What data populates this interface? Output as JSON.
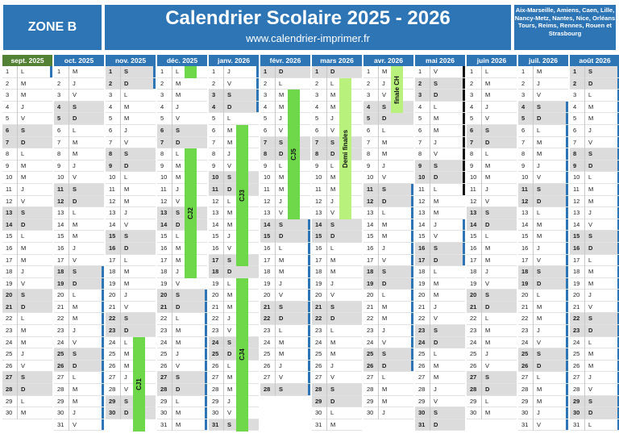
{
  "header": {
    "zone": "ZONE B",
    "title": "Calendrier Scolaire 2025 - 2026",
    "url": "www.calendrier-imprimer.fr",
    "cities": "Aix-Marseille, Amiens, Caen, Lille, Nancy-Metz, Nantes, Nice, Orléans Tours, Reims, Rennes, Rouen et Strasbourg"
  },
  "colors": {
    "header_blue": "#2e75b6",
    "september_green": "#548235",
    "vacation_marker": "#2e75b6",
    "weekend_gray": "#dcdcdc",
    "event_green": "#6ed84a",
    "event_light_green": "#b8f27c"
  },
  "months": [
    {
      "label": "sept. 2025",
      "days": [
        "L",
        "M",
        "M",
        "J",
        "V",
        "S",
        "D",
        "L",
        "M",
        "M",
        "J",
        "V",
        "S",
        "D",
        "L",
        "M",
        "M",
        "J",
        "V",
        "S",
        "D",
        "L",
        "M",
        "M",
        "J",
        "V",
        "S",
        "D",
        "L",
        "M"
      ]
    },
    {
      "label": "oct. 2025",
      "days": [
        "M",
        "J",
        "V",
        "S",
        "D",
        "L",
        "M",
        "M",
        "J",
        "V",
        "S",
        "D",
        "L",
        "M",
        "M",
        "J",
        "V",
        "S",
        "D",
        "L",
        "M",
        "M",
        "J",
        "V",
        "S",
        "D",
        "L",
        "M",
        "M",
        "J",
        "V"
      ]
    },
    {
      "label": "nov. 2025",
      "days": [
        "S",
        "D",
        "L",
        "M",
        "M",
        "J",
        "V",
        "S",
        "D",
        "L",
        "M",
        "M",
        "J",
        "V",
        "S",
        "D",
        "L",
        "M",
        "M",
        "J",
        "V",
        "S",
        "D",
        "L",
        "M",
        "M",
        "J",
        "V",
        "S",
        "D"
      ]
    },
    {
      "label": "déc. 2025",
      "days": [
        "L",
        "M",
        "M",
        "J",
        "V",
        "S",
        "D",
        "L",
        "M",
        "M",
        "J",
        "V",
        "S",
        "D",
        "L",
        "M",
        "M",
        "J",
        "V",
        "S",
        "D",
        "L",
        "M",
        "M",
        "J",
        "V",
        "S",
        "D",
        "L",
        "M",
        "M"
      ]
    },
    {
      "label": "janv. 2026",
      "days": [
        "J",
        "V",
        "S",
        "D",
        "L",
        "M",
        "M",
        "J",
        "V",
        "S",
        "D",
        "L",
        "M",
        "M",
        "J",
        "V",
        "S",
        "D",
        "L",
        "M",
        "M",
        "J",
        "V",
        "S",
        "D",
        "L",
        "M",
        "M",
        "J",
        "V",
        "S"
      ]
    },
    {
      "label": "févr. 2026",
      "days": [
        "D",
        "L",
        "M",
        "M",
        "J",
        "V",
        "S",
        "D",
        "L",
        "M",
        "M",
        "J",
        "V",
        "S",
        "D",
        "L",
        "M",
        "M",
        "J",
        "V",
        "S",
        "D",
        "L",
        "M",
        "M",
        "J",
        "V",
        "S"
      ]
    },
    {
      "label": "mars 2026",
      "days": [
        "D",
        "L",
        "M",
        "M",
        "J",
        "V",
        "S",
        "D",
        "L",
        "M",
        "M",
        "J",
        "V",
        "S",
        "D",
        "L",
        "M",
        "M",
        "J",
        "V",
        "S",
        "D",
        "L",
        "M",
        "M",
        "J",
        "V",
        "S",
        "D",
        "L",
        "M"
      ]
    },
    {
      "label": "avr. 2026",
      "days": [
        "M",
        "J",
        "V",
        "S",
        "D",
        "L",
        "M",
        "M",
        "J",
        "V",
        "S",
        "D",
        "L",
        "M",
        "M",
        "J",
        "V",
        "S",
        "D",
        "L",
        "M",
        "M",
        "J",
        "V",
        "S",
        "D",
        "L",
        "M",
        "M",
        "J"
      ]
    },
    {
      "label": "mai 2026",
      "days": [
        "V",
        "S",
        "D",
        "L",
        "M",
        "M",
        "J",
        "V",
        "S",
        "D",
        "L",
        "M",
        "M",
        "J",
        "V",
        "S",
        "D",
        "L",
        "M",
        "M",
        "J",
        "V",
        "S",
        "D",
        "L",
        "M",
        "M",
        "J",
        "V",
        "S",
        "D"
      ]
    },
    {
      "label": "juin 2026",
      "days": [
        "L",
        "M",
        "M",
        "J",
        "V",
        "S",
        "D",
        "L",
        "M",
        "M",
        "J",
        "V",
        "S",
        "D",
        "L",
        "M",
        "M",
        "J",
        "V",
        "S",
        "D",
        "L",
        "M",
        "M",
        "J",
        "V",
        "S",
        "D",
        "L",
        "M"
      ]
    },
    {
      "label": "juil. 2026",
      "days": [
        "M",
        "J",
        "V",
        "S",
        "D",
        "L",
        "M",
        "M",
        "J",
        "V",
        "S",
        "D",
        "L",
        "M",
        "M",
        "J",
        "V",
        "S",
        "D",
        "L",
        "M",
        "M",
        "J",
        "V",
        "S",
        "D",
        "L",
        "M",
        "M",
        "J",
        "V"
      ]
    },
    {
      "label": "août 2026",
      "days": [
        "S",
        "D",
        "L",
        "M",
        "M",
        "J",
        "V",
        "S",
        "D",
        "L",
        "M",
        "M",
        "J",
        "V",
        "S",
        "D",
        "L",
        "M",
        "M",
        "J",
        "V",
        "S",
        "D",
        "L",
        "M",
        "M",
        "J",
        "V",
        "S",
        "D",
        "L"
      ]
    }
  ],
  "vacations": [
    {
      "month": 1,
      "from": 18,
      "to": 31
    },
    {
      "month": 2,
      "from": 1,
      "to": 2
    },
    {
      "month": 3,
      "from": 20,
      "to": 31
    },
    {
      "month": 4,
      "from": 1,
      "to": 4
    },
    {
      "month": 5,
      "from": 14,
      "to": 28
    },
    {
      "month": 7,
      "from": 11,
      "to": 26
    },
    {
      "month": 8,
      "from": 14,
      "to": 17
    },
    {
      "month": 10,
      "from": 4,
      "to": 31
    },
    {
      "month": 11,
      "from": 1,
      "to": 31
    },
    {
      "month": 0,
      "from": 1,
      "to": 1
    }
  ],
  "black_marks": [
    {
      "month": 8,
      "from": 1,
      "to": 9
    },
    {
      "month": 8,
      "from": 8,
      "to": 11
    }
  ],
  "events": [
    {
      "label": "CJ1",
      "month": 2,
      "from": 24,
      "to": 31
    },
    {
      "label": "",
      "month": 3,
      "from": 1,
      "to": 1
    },
    {
      "label": "CJ2",
      "month": 3,
      "from": 8,
      "to": 18
    },
    {
      "label": "CJ3",
      "month": 4,
      "from": 6,
      "to": 17
    },
    {
      "label": "CJ4",
      "month": 4,
      "from": 19,
      "to": 31
    },
    {
      "label": "CJ5",
      "month": 5,
      "from": 3,
      "to": 13
    },
    {
      "label": "Demi finales",
      "month": 6,
      "from": 2,
      "to": 13,
      "light": true
    },
    {
      "label": "finale CH",
      "month": 7,
      "from": 1,
      "to": 4,
      "light": true
    }
  ]
}
